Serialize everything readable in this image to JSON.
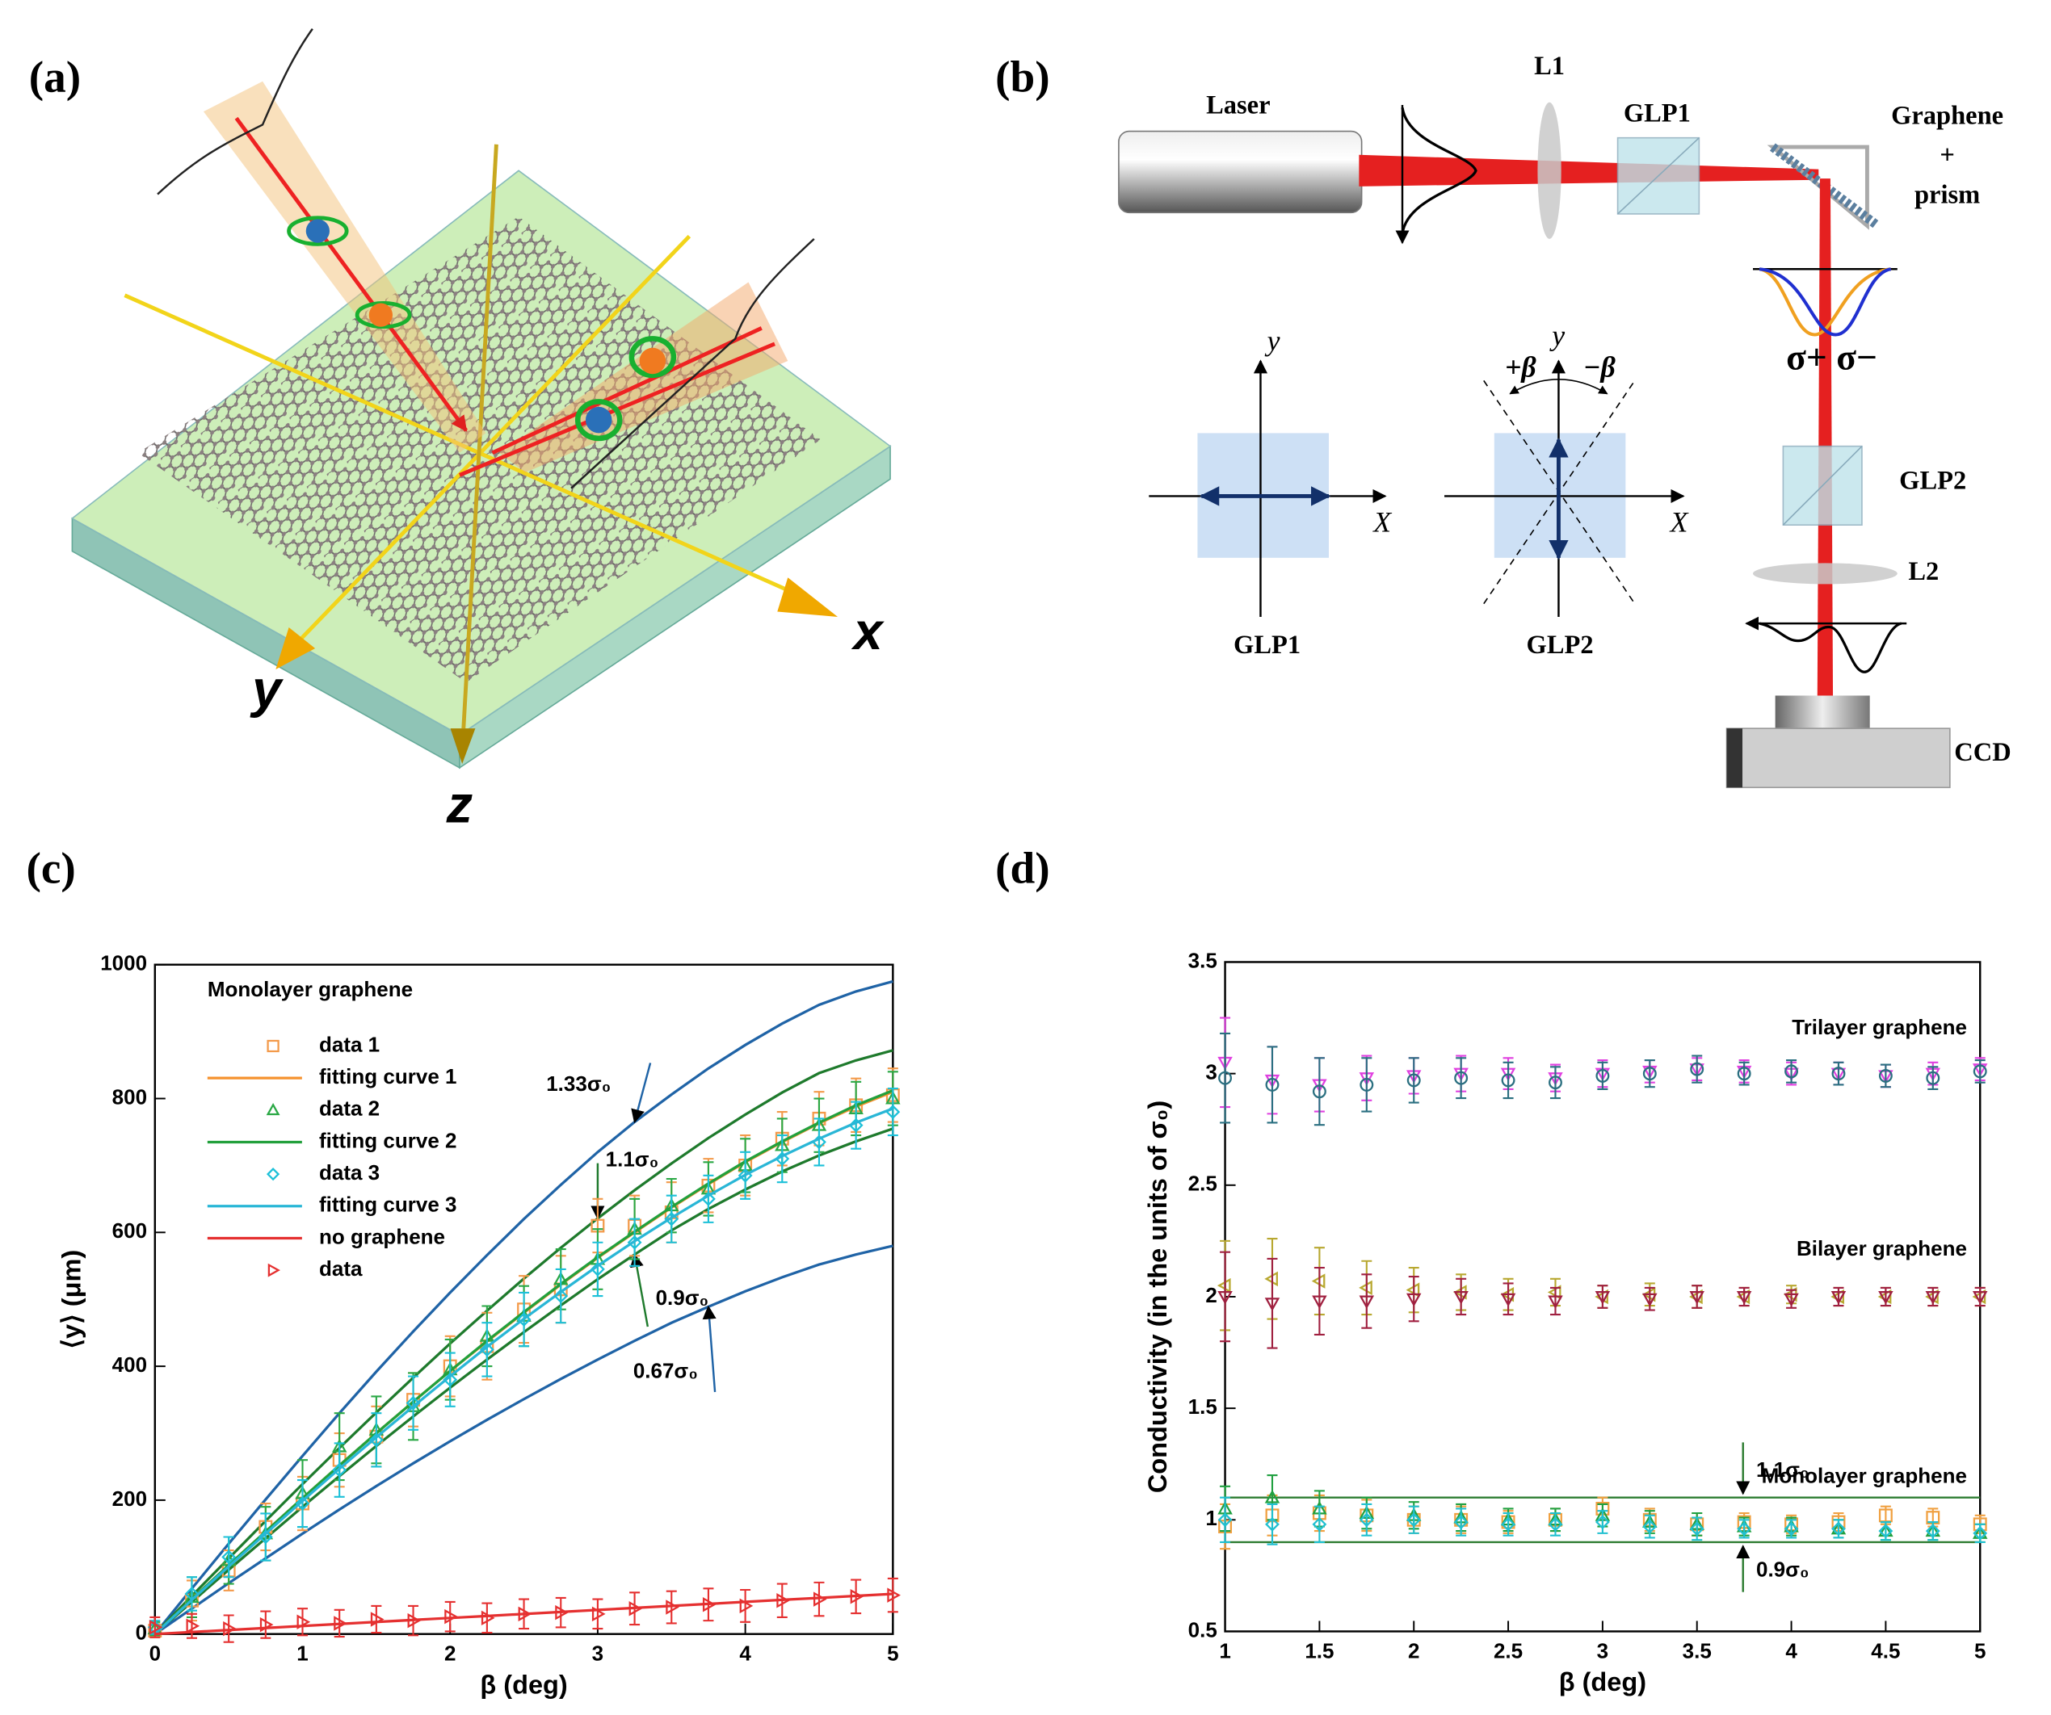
{
  "diagram_a": {
    "panel_label": "(a)",
    "axis_labels": {
      "x": "x",
      "y": "y",
      "z": "z"
    }
  },
  "diagram_b": {
    "panel_label": "(b)",
    "labels": {
      "laser": "Laser",
      "l1": "L1",
      "glp1": "GLP1",
      "graphene": "Graphene",
      "plus": "+",
      "prism": "prism",
      "sigma": "σ+ σ−",
      "glp2": "GLP2",
      "l2": "L2",
      "ccd": "CCD"
    },
    "insets": [
      {
        "title": "GLP1",
        "x_label": "X",
        "y_label": "y"
      },
      {
        "title": "GLP2",
        "x_label": "X",
        "y_label": "y",
        "angle_labels": [
          "+β",
          "−β"
        ]
      }
    ]
  },
  "chart_data": [
    {
      "type": "line",
      "panel_label": "(c)",
      "x_label": "β (deg)",
      "y_label": "⟨y⟩ (μm)",
      "xlim": [
        0,
        5
      ],
      "ylim": [
        0,
        1000
      ],
      "xticks": [
        0,
        1,
        2,
        3,
        4,
        5
      ],
      "yticks": [
        0,
        200,
        400,
        600,
        800,
        1000
      ],
      "legend": "upper left",
      "legend_title": "Monolayer graphene",
      "x": [
        0,
        0.25,
        0.5,
        0.75,
        1,
        1.25,
        1.5,
        1.75,
        2,
        2.25,
        2.5,
        2.75,
        3,
        3.25,
        3.5,
        3.75,
        4,
        4.25,
        4.5,
        4.75,
        5
      ],
      "curves": [
        {
          "label": "1.33σ₀",
          "color": "#1f63a6",
          "values": [
            0,
            68,
            135,
            201,
            266,
            330,
            392,
            452,
            510,
            566,
            620,
            671,
            720,
            765,
            806,
            845,
            880,
            912,
            940,
            960,
            975
          ]
        },
        {
          "label": "1.1σ₀",
          "color": "#1e7a2c",
          "values": [
            0,
            57,
            113,
            169,
            224,
            278,
            331,
            383,
            434,
            483,
            531,
            577,
            621,
            663,
            703,
            741,
            776,
            809,
            838,
            857,
            872
          ]
        },
        {
          "label": "0.9σ₀",
          "color": "#1e7a2c",
          "values": [
            0,
            48,
            96,
            143,
            190,
            236,
            281,
            325,
            368,
            410,
            451,
            491,
            530,
            567,
            603,
            635,
            664,
            691,
            715,
            736,
            755
          ]
        },
        {
          "label": "0.67σ₀",
          "color": "#1f63a6",
          "values": [
            0,
            38,
            76,
            113,
            150,
            186,
            221,
            255,
            288,
            320,
            351,
            381,
            410,
            438,
            465,
            489,
            512,
            533,
            552,
            567,
            580
          ]
        }
      ],
      "series": [
        {
          "name": "data 1",
          "color": "#f39a4a",
          "style": "markers",
          "marker": "square",
          "values": [
            5,
            50,
            95,
            160,
            195,
            260,
            295,
            350,
            400,
            430,
            485,
            515,
            610,
            610,
            630,
            670,
            700,
            740,
            770,
            790,
            805
          ],
          "errors": [
            10,
            30,
            30,
            35,
            40,
            40,
            45,
            40,
            45,
            50,
            50,
            50,
            40,
            45,
            45,
            40,
            45,
            40,
            40,
            40,
            40
          ]
        },
        {
          "name": "fitting curve 1",
          "color": "#f5922f",
          "style": "line",
          "values": [
            0,
            52,
            103,
            153,
            203,
            252,
            300,
            347,
            393,
            437,
            480,
            522,
            562,
            600,
            637,
            672,
            705,
            735,
            763,
            788,
            810
          ]
        },
        {
          "name": "data 2",
          "color": "#2aa845",
          "style": "markers",
          "marker": "triangle",
          "values": [
            8,
            55,
            110,
            150,
            210,
            280,
            305,
            340,
            395,
            445,
            475,
            530,
            560,
            605,
            640,
            665,
            700,
            730,
            760,
            785,
            800
          ],
          "errors": [
            10,
            30,
            35,
            40,
            50,
            50,
            50,
            50,
            45,
            45,
            45,
            45,
            45,
            45,
            40,
            40,
            40,
            40,
            40,
            40,
            40
          ]
        },
        {
          "name": "fitting curve 2",
          "color": "#22a03c",
          "style": "line",
          "values": [
            0,
            52,
            103,
            153,
            203,
            252,
            300,
            347,
            393,
            438,
            481,
            523,
            563,
            601,
            638,
            673,
            706,
            736,
            764,
            790,
            812
          ]
        },
        {
          "name": "data 3",
          "color": "#1cc0d8",
          "style": "markers",
          "marker": "diamond",
          "values": [
            10,
            60,
            115,
            145,
            195,
            245,
            290,
            345,
            380,
            425,
            470,
            505,
            545,
            585,
            620,
            650,
            685,
            710,
            735,
            760,
            780
          ],
          "errors": [
            10,
            25,
            30,
            35,
            35,
            40,
            40,
            40,
            40,
            40,
            40,
            40,
            40,
            35,
            35,
            35,
            35,
            35,
            35,
            35,
            35
          ]
        },
        {
          "name": "fitting curve 3",
          "color": "#29b6d6",
          "style": "line",
          "values": [
            0,
            51,
            101,
            150,
            199,
            247,
            294,
            340,
            385,
            429,
            471,
            511,
            550,
            587,
            622,
            655,
            686,
            714,
            740,
            764,
            785
          ]
        },
        {
          "name": "no graphene",
          "color": "#e53030",
          "style": "line",
          "values": [
            0,
            3,
            6,
            9,
            12,
            15,
            18,
            21,
            24,
            27,
            30,
            33,
            36,
            39,
            42,
            45,
            48,
            51,
            54,
            57,
            60
          ]
        },
        {
          "name": "data",
          "color": "#e53030",
          "style": "markers",
          "marker": "triangle-right",
          "values": [
            10,
            12,
            8,
            14,
            18,
            16,
            22,
            20,
            26,
            24,
            30,
            32,
            30,
            38,
            40,
            44,
            42,
            50,
            52,
            56,
            58
          ],
          "errors": [
            15,
            18,
            20,
            20,
            20,
            20,
            20,
            22,
            22,
            22,
            22,
            22,
            22,
            24,
            24,
            24,
            24,
            25,
            25,
            25,
            25
          ]
        }
      ]
    },
    {
      "type": "scatter",
      "panel_label": "(d)",
      "x_label": "β (deg)",
      "y_label": "Conductivity (in the units of σ₀)",
      "xlim": [
        1,
        5
      ],
      "ylim": [
        0.5,
        3.5
      ],
      "xticks": [
        1,
        1.5,
        2,
        2.5,
        3,
        3.5,
        4,
        4.5,
        5
      ],
      "yticks": [
        0.5,
        1,
        1.5,
        2,
        2.5,
        3,
        3.5
      ],
      "x": [
        1,
        1.25,
        1.5,
        1.75,
        2,
        2.25,
        2.5,
        2.75,
        3,
        3.25,
        3.5,
        3.75,
        4,
        4.25,
        4.5,
        4.75,
        5
      ],
      "annotations": [
        "Trilayer graphene",
        "Bilayer graphene",
        "Monolayer graphene"
      ],
      "reference_lines": [
        {
          "value": 1.1,
          "label": "1.1σ₀",
          "color": "#2e7d32"
        },
        {
          "value": 0.9,
          "label": "0.9σ₀",
          "color": "#2e7d32"
        }
      ],
      "series": [
        {
          "color": "#e040e0",
          "style": "markers",
          "marker": "triangle-down",
          "values": [
            3.05,
            2.97,
            2.95,
            2.98,
            2.99,
            3,
            3,
            2.98,
            3,
            3.01,
            3.02,
            3.01,
            3,
            3,
            2.99,
            3,
            3.02
          ],
          "errors": [
            0.2,
            0.15,
            0.12,
            0.1,
            0.08,
            0.08,
            0.07,
            0.06,
            0.06,
            0.05,
            0.05,
            0.05,
            0.05,
            0.05,
            0.05,
            0.05,
            0.05
          ]
        },
        {
          "color": "#2a6f80",
          "style": "markers",
          "marker": "circle",
          "values": [
            2.98,
            2.95,
            2.92,
            2.95,
            2.97,
            2.98,
            2.97,
            2.96,
            2.99,
            3,
            3.02,
            3,
            3.01,
            3,
            2.99,
            2.98,
            3.01
          ],
          "errors": [
            0.2,
            0.17,
            0.15,
            0.12,
            0.1,
            0.09,
            0.08,
            0.07,
            0.06,
            0.06,
            0.06,
            0.05,
            0.05,
            0.05,
            0.05,
            0.05,
            0.05
          ]
        },
        {
          "color": "#b8a830",
          "style": "markers",
          "marker": "triangle-left",
          "values": [
            2.05,
            2.08,
            2.07,
            2.04,
            2.03,
            2.02,
            2.01,
            2.02,
            2,
            2.01,
            2,
            2,
            2.01,
            2,
            2,
            2,
            2
          ],
          "errors": [
            0.2,
            0.18,
            0.15,
            0.12,
            0.1,
            0.08,
            0.07,
            0.06,
            0.05,
            0.05,
            0.05,
            0.04,
            0.04,
            0.04,
            0.04,
            0.04,
            0.04
          ]
        },
        {
          "color": "#a02040",
          "style": "markers",
          "marker": "triangle-down",
          "values": [
            2,
            1.97,
            1.98,
            1.98,
            1.99,
            2,
            1.99,
            1.98,
            2,
            1.99,
            2,
            2,
            1.99,
            2,
            2,
            2,
            2
          ],
          "errors": [
            0.2,
            0.2,
            0.15,
            0.12,
            0.1,
            0.08,
            0.07,
            0.06,
            0.05,
            0.05,
            0.05,
            0.04,
            0.04,
            0.04,
            0.04,
            0.04,
            0.04
          ]
        },
        {
          "color": "#f0a040",
          "style": "markers",
          "marker": "square",
          "values": [
            0.97,
            1.02,
            1.03,
            1.02,
            1,
            1,
            0.99,
            1,
            1.05,
            1,
            0.98,
            0.99,
            0.98,
            0.99,
            1.02,
            1.01,
            0.98
          ],
          "errors": [
            0.1,
            0.09,
            0.08,
            0.07,
            0.06,
            0.06,
            0.05,
            0.05,
            0.05,
            0.05,
            0.05,
            0.04,
            0.04,
            0.04,
            0.04,
            0.04,
            0.04
          ]
        },
        {
          "color": "#20a040",
          "style": "markers",
          "marker": "triangle",
          "values": [
            1.05,
            1.1,
            1.05,
            1.03,
            1.02,
            1.01,
            1,
            1,
            1.02,
            0.99,
            0.98,
            0.97,
            0.97,
            0.96,
            0.95,
            0.95,
            0.94
          ],
          "errors": [
            0.1,
            0.1,
            0.08,
            0.07,
            0.06,
            0.06,
            0.05,
            0.05,
            0.05,
            0.05,
            0.05,
            0.04,
            0.04,
            0.04,
            0.04,
            0.04,
            0.04
          ]
        },
        {
          "color": "#20c0d0",
          "style": "markers",
          "marker": "diamond",
          "values": [
            1,
            0.98,
            0.98,
            1,
            1,
            0.99,
            0.98,
            0.98,
            0.99,
            0.97,
            0.96,
            0.96,
            0.96,
            0.96,
            0.95,
            0.95,
            0.94
          ],
          "errors": [
            0.1,
            0.09,
            0.08,
            0.07,
            0.06,
            0.06,
            0.05,
            0.05,
            0.05,
            0.05,
            0.05,
            0.04,
            0.04,
            0.04,
            0.04,
            0.04,
            0.04
          ]
        }
      ]
    }
  ]
}
